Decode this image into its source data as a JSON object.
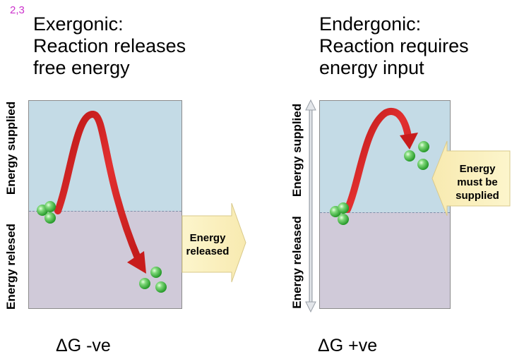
{
  "slide_tag": "2,3",
  "exergonic": {
    "title_lines": [
      "Exergonic:",
      "Reaction releases",
      "free energy"
    ],
    "axis_top": "Energy supplied",
    "axis_bottom": "Energy relesed",
    "callout": "Energy\nreleased",
    "delta_g": "ΔG -ve"
  },
  "endergonic": {
    "title_lines": [
      "Endergonic:",
      "Reaction requires",
      "energy input"
    ],
    "axis_top": "Energy supplied",
    "axis_bottom": "Energy released",
    "callout": "Energy\nmust be\nsupplied",
    "delta_g": "ΔG +ve"
  },
  "colors": {
    "upper_region": "#c4dbe6",
    "lower_region": "#d0cad9",
    "callout_fill": "#fbf2c0",
    "arrow_red": "#d42020",
    "molecule_green": "#4cbd4a",
    "tag_magenta": "#cc33cc"
  }
}
